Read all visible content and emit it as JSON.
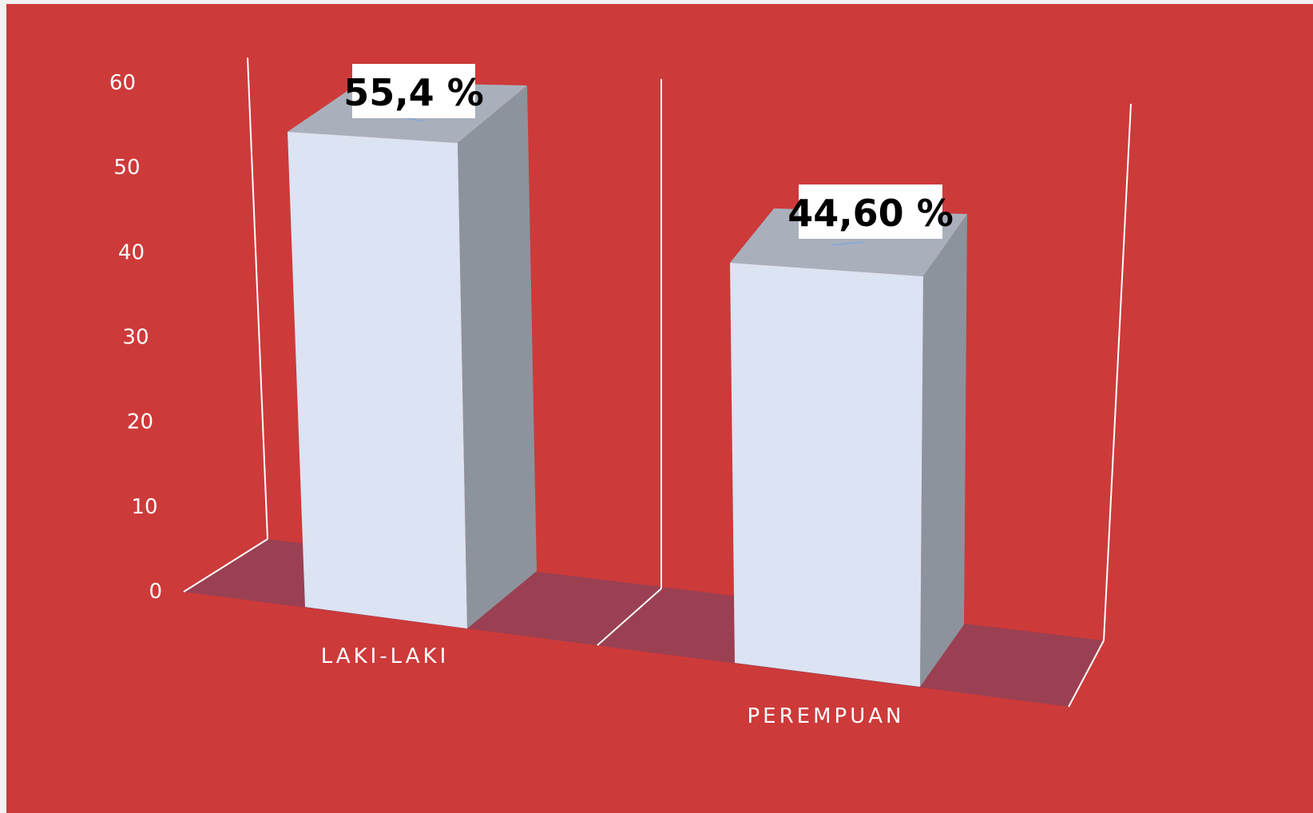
{
  "colors": {
    "background": "#CD3A3A",
    "floor": "#9A4052",
    "bar_front": "#DCE3F2",
    "bar_side": "#8C939D",
    "bar_top": "#A9B0BC",
    "gridline": "#FFFFFF",
    "label_box": "#FFFFFF",
    "label_text": "#000000",
    "axis_text": "#FFFFFF"
  },
  "chart_data": {
    "type": "bar",
    "style": "3d-column",
    "title": "",
    "xlabel": "",
    "ylabel": "",
    "categories": [
      "LAKI-LAKI",
      "PEREMPUAN"
    ],
    "values": [
      55.4,
      44.6
    ],
    "data_labels": [
      "55,4 %",
      "44,60 %"
    ],
    "y_ticks": [
      "0",
      "10",
      "20",
      "30",
      "40",
      "50",
      "60"
    ],
    "ylim": [
      0,
      60
    ],
    "grid": false,
    "legend": "none"
  }
}
